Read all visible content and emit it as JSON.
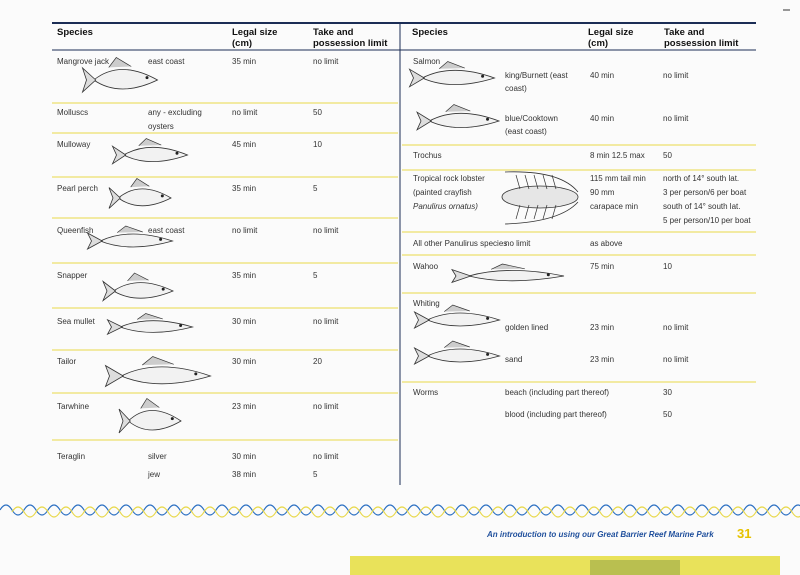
{
  "left": {
    "headers": [
      "Species",
      "Legal size (cm)",
      "Take and possession limit"
    ],
    "rows": [
      {
        "species": "Mangrove jack",
        "note": "east coast",
        "size": "35 min",
        "limit": "no limit"
      },
      {
        "species": "Molluscs",
        "note": [
          "any - excluding",
          "oysters"
        ],
        "size": "no limit",
        "limit": "50"
      },
      {
        "species": "Mulloway",
        "size": "45 min",
        "limit": "10"
      },
      {
        "species": "Pearl perch",
        "size": "35 min",
        "limit": "5"
      },
      {
        "species": "Queenfish",
        "note": "east coast",
        "size": "no limit",
        "limit": "no limit"
      },
      {
        "species": "Snapper",
        "size": "35 min",
        "limit": "5"
      },
      {
        "species": "Sea mullet",
        "size": "30 min",
        "limit": "no limit"
      },
      {
        "species": "Tailor",
        "size": "30 min",
        "limit": "20"
      },
      {
        "species": "Tarwhine",
        "size": "23 min",
        "limit": "no limit"
      },
      {
        "species": "Teraglin",
        "note": [
          "silver",
          "jew"
        ],
        "size": [
          "30 min",
          "38 min"
        ],
        "limit": [
          "no limit",
          "5"
        ]
      }
    ]
  },
  "right": {
    "headers": [
      "Species",
      "Legal size (cm)",
      "Take and possession limit"
    ],
    "rows": [
      {
        "species": "Salmon",
        "entries": [
          {
            "note": [
              "king/Burnett (east",
              "coast)"
            ],
            "size": "40 min",
            "limit": "no limit"
          },
          {
            "note": [
              "blue/Cooktown",
              "(east coast)"
            ],
            "size": "40 min",
            "limit": "no limit"
          }
        ]
      },
      {
        "species": "Trochus",
        "size": "8 min 12.5 max",
        "limit": "50"
      },
      {
        "species": [
          "Tropical rock lobster",
          "(painted crayfish",
          "Panulirus ornatus)"
        ],
        "size": [
          "115 mm tail min",
          "90 mm",
          "carapace min"
        ],
        "limit": [
          "north of 14° south lat.",
          "3 per person/6 per boat",
          "south of 14° south lat.",
          "5 per person/10 per boat"
        ]
      },
      {
        "species": "All other Panulirus species",
        "note": "no limit",
        "size": "as above"
      },
      {
        "species": "Wahoo",
        "size": "75 min",
        "limit": "10"
      },
      {
        "species": "Whiting",
        "entries": [
          {
            "note": "golden lined",
            "size": "23 min",
            "limit": "no limit"
          },
          {
            "note": "sand",
            "size": "23 min",
            "limit": "no limit"
          }
        ]
      },
      {
        "species": "Worms",
        "entries": [
          {
            "note": "beach (including part thereof)",
            "limit": "30"
          },
          {
            "note": "blood (including part thereof)",
            "limit": "50"
          }
        ]
      }
    ]
  },
  "footer": {
    "title": "An introduction to using our Great Barrier Reef Marine Park",
    "page": "31"
  }
}
